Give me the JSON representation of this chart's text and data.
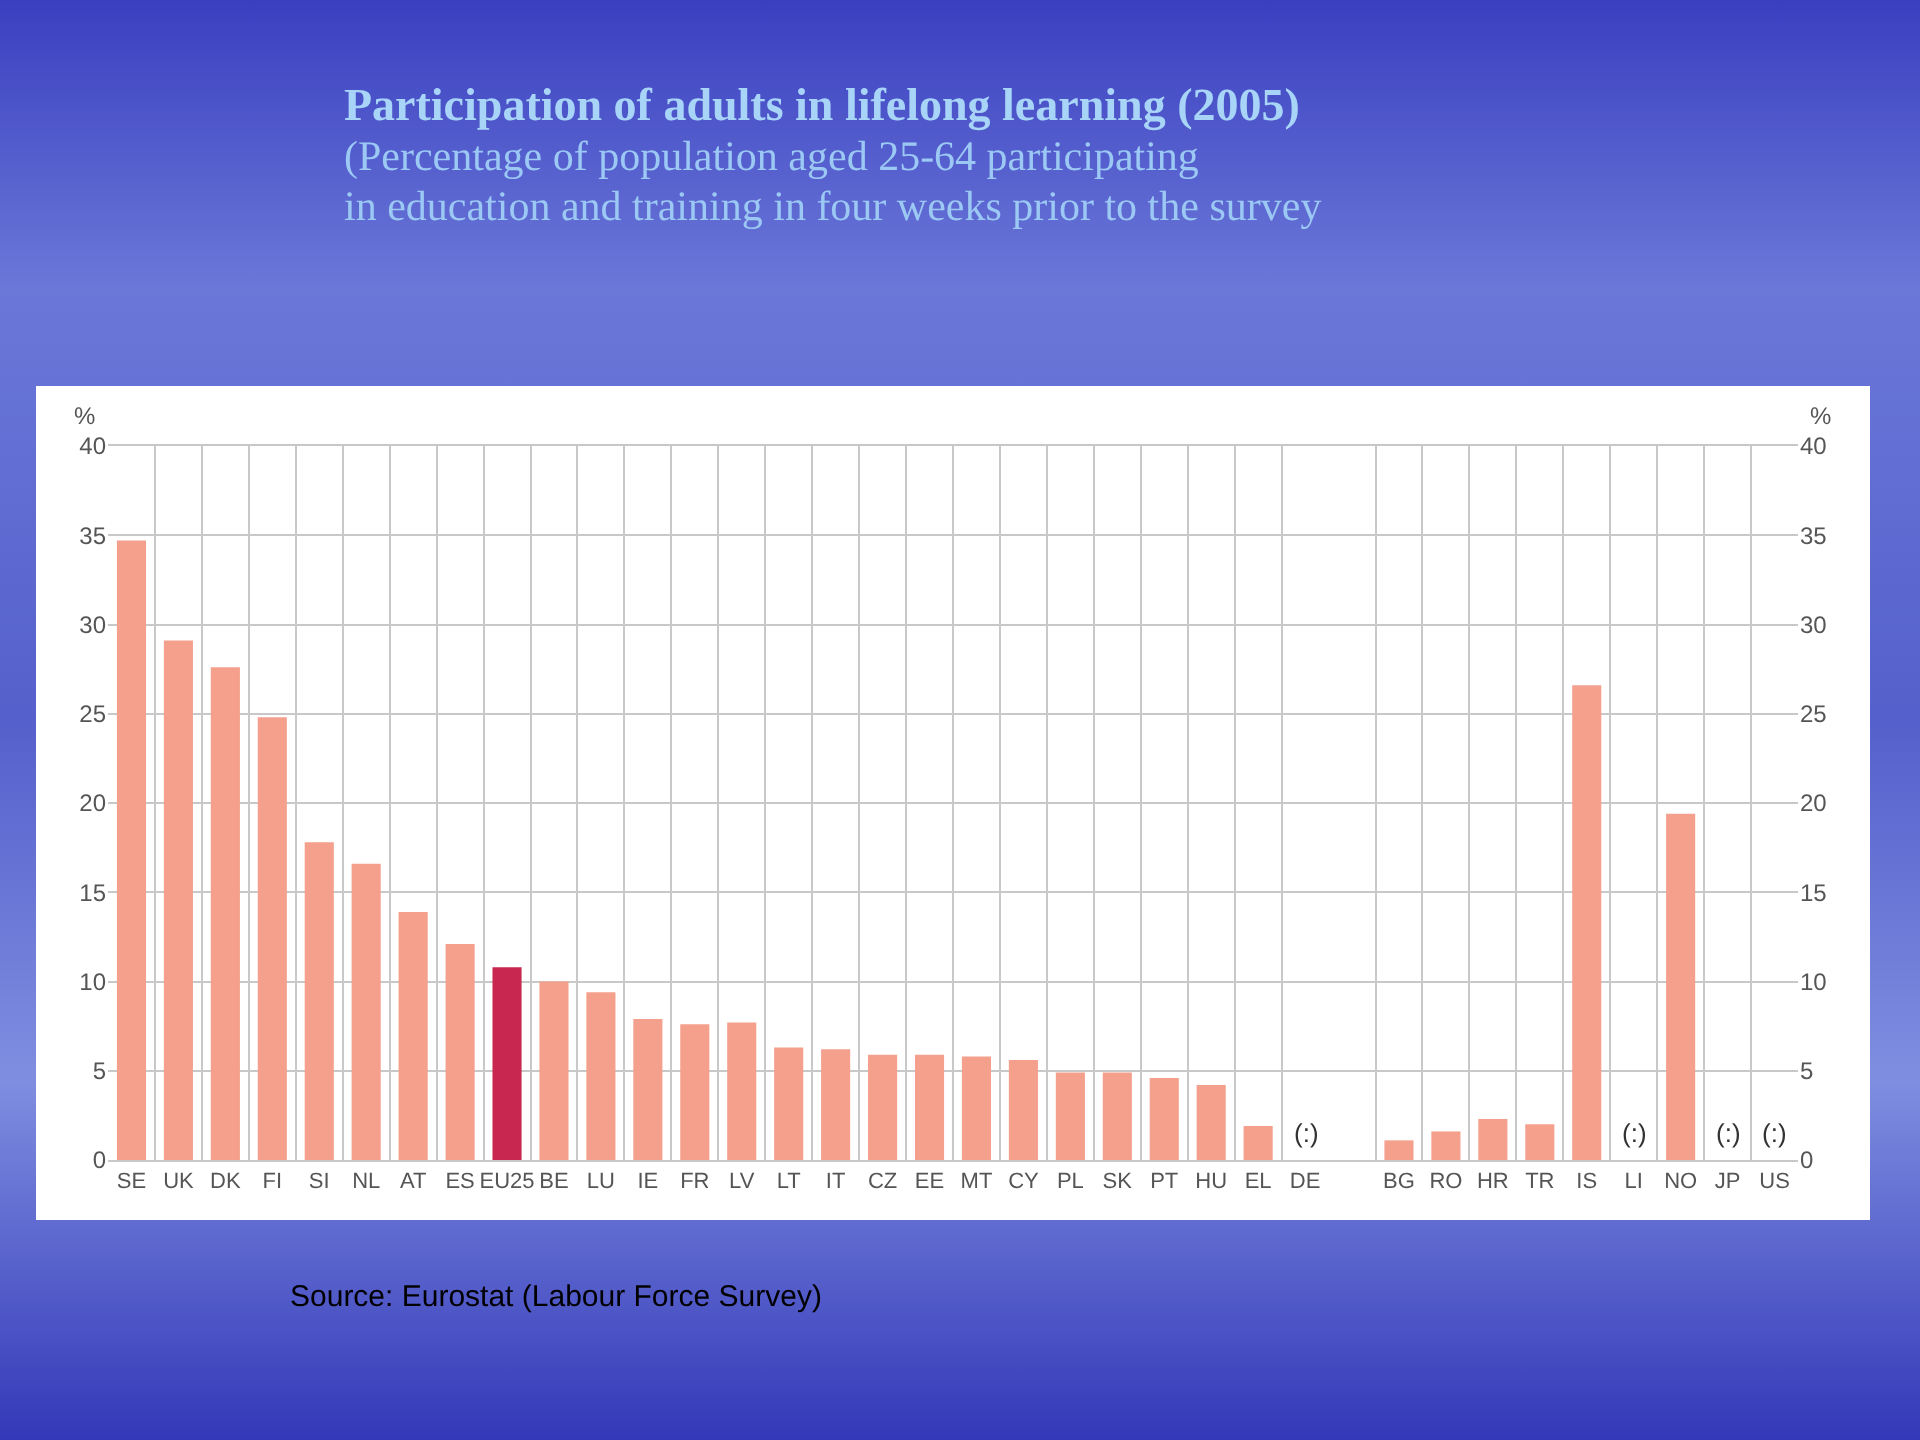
{
  "chart_data": {
    "type": "bar",
    "title": "Participation of adults in lifelong learning (2005)",
    "subtitle": "(Percentage of population aged 25-64 participating\nin education and training in four weeks prior to the survey",
    "ylabel": "%",
    "y2label": "%",
    "categories": [
      "SE",
      "UK",
      "DK",
      "FI",
      "SI",
      "NL",
      "AT",
      "ES",
      "EU25",
      "BE",
      "LU",
      "IE",
      "FR",
      "LV",
      "LT",
      "IT",
      "CZ",
      "EE",
      "MT",
      "CY",
      "PL",
      "SK",
      "PT",
      "HU",
      "EL",
      "DE",
      null,
      "BG",
      "RO",
      "HR",
      "TR",
      "IS",
      "LI",
      "NO",
      "JP",
      "US"
    ],
    "values": [
      34.7,
      29.1,
      27.6,
      24.8,
      17.8,
      16.6,
      13.9,
      12.1,
      10.8,
      10.0,
      9.4,
      7.9,
      7.6,
      7.7,
      6.3,
      6.2,
      5.9,
      5.9,
      5.8,
      5.6,
      4.9,
      4.9,
      4.6,
      4.2,
      1.9,
      null,
      null,
      1.1,
      1.6,
      2.3,
      2.0,
      26.6,
      null,
      19.4,
      null,
      null
    ],
    "colors": [
      "#f4a08c",
      "#f4a08c",
      "#f4a08c",
      "#f4a08c",
      "#f4a08c",
      "#f4a08c",
      "#f4a08c",
      "#f4a08c",
      "#c8284f",
      "#f4a08c",
      "#f4a08c",
      "#f4a08c",
      "#f4a08c",
      "#f4a08c",
      "#f4a08c",
      "#f4a08c",
      "#f4a08c",
      "#f4a08c",
      "#f4a08c",
      "#f4a08c",
      "#f4a08c",
      "#f4a08c",
      "#f4a08c",
      "#f4a08c",
      "#f4a08c",
      "#f4a08c",
      "#f4a08c",
      "#f4a08c",
      "#f4a08c",
      "#f4a08c",
      "#f4a08c",
      "#f4a08c",
      "#f4a08c",
      "#f4a08c",
      "#f4a08c",
      "#f4a08c"
    ],
    "ylim": [
      0,
      40
    ],
    "yticks": [
      0,
      5,
      10,
      15,
      20,
      25,
      30,
      35,
      40
    ],
    "y2lim": [
      0,
      40
    ],
    "y2ticks": [
      0,
      5,
      10,
      15,
      20,
      25,
      30,
      35,
      40
    ],
    "grid": true,
    "value_labels": [
      null,
      null,
      null,
      null,
      null,
      null,
      null,
      null,
      null,
      null,
      null,
      null,
      null,
      null,
      null,
      null,
      null,
      null,
      null,
      null,
      null,
      null,
      null,
      null,
      null,
      "(:)",
      null,
      null,
      null,
      null,
      null,
      null,
      "(:)",
      null,
      "(:)",
      "(:)"
    ],
    "annotations": [
      "Source: Eurostat (Labour Force Survey)"
    ]
  }
}
